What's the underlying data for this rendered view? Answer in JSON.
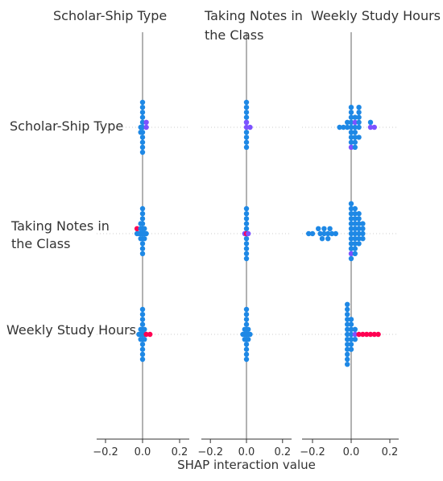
{
  "chart_data": {
    "type": "scatter",
    "subtype": "shap-interaction-beeswarm-matrix",
    "features": [
      "Scholar-Ship Type",
      "Taking Notes in the Class",
      "Weekly Study Hours"
    ],
    "column_titles": [
      [
        "Scholar-Ship Type"
      ],
      [
        "Taking Notes in",
        "the Class"
      ],
      [
        "Weekly Study Hours"
      ]
    ],
    "row_labels": [
      [
        "Scholar-Ship Type"
      ],
      [
        "Taking Notes in",
        "the Class"
      ],
      [
        "Weekly Study Hours"
      ]
    ],
    "xlabel": "SHAP interaction value",
    "xlim": [
      -0.25,
      0.25
    ],
    "xticks": [
      -0.2,
      0.0,
      0.2
    ],
    "xtick_labels": [
      "−0.2",
      "0.0",
      "0.2"
    ],
    "grid": "dotted horizontal row lines",
    "colors": {
      "low": "#1e88e5",
      "mid": "#7c52ff",
      "high": "#ff0052",
      "zero_line": "#999999",
      "axis": "#333333"
    },
    "cells": [
      {
        "row": 0,
        "col": 0,
        "points": [
          {
            "x": 0.0,
            "dy": -1,
            "c": 0
          },
          {
            "x": 0.0,
            "dy": 1,
            "c": 0
          },
          {
            "x": 0.0,
            "dy": -2,
            "c": 0
          },
          {
            "x": 0.0,
            "dy": 2,
            "c": 0
          },
          {
            "x": 0.0,
            "dy": -3,
            "c": 0
          },
          {
            "x": 0.0,
            "dy": 3,
            "c": 0
          },
          {
            "x": 0.0,
            "dy": -4,
            "c": 0
          },
          {
            "x": 0.0,
            "dy": 4,
            "c": 0
          },
          {
            "x": 0.0,
            "dy": -5,
            "c": 0
          },
          {
            "x": 0.0,
            "dy": 5,
            "c": 0
          },
          {
            "x": -0.01,
            "dy": 0,
            "c": 0
          },
          {
            "x": 0.0,
            "dy": 0,
            "c": 0
          },
          {
            "x": 0.02,
            "dy": 0,
            "c": 1
          },
          {
            "x": 0.02,
            "dy": -1,
            "c": 1
          },
          {
            "x": -0.01,
            "dy": 1,
            "c": 0
          }
        ]
      },
      {
        "row": 0,
        "col": 1,
        "points": [
          {
            "x": 0.0,
            "dy": -1,
            "c": 0
          },
          {
            "x": 0.0,
            "dy": 1,
            "c": 0
          },
          {
            "x": 0.0,
            "dy": -2,
            "c": 0
          },
          {
            "x": 0.0,
            "dy": 2,
            "c": 0
          },
          {
            "x": 0.0,
            "dy": -3,
            "c": 0
          },
          {
            "x": 0.0,
            "dy": 3,
            "c": 0
          },
          {
            "x": 0.0,
            "dy": -4,
            "c": 0
          },
          {
            "x": 0.0,
            "dy": 4,
            "c": 0
          },
          {
            "x": 0.0,
            "dy": -5,
            "c": 0
          },
          {
            "x": 0.0,
            "dy": 0,
            "c": 1
          },
          {
            "x": 0.02,
            "dy": 0,
            "c": 1
          },
          {
            "x": 0.0,
            "dy": -1,
            "c": 1
          }
        ]
      },
      {
        "row": 0,
        "col": 2,
        "points": [
          {
            "x": -0.06,
            "dy": 0,
            "c": 0
          },
          {
            "x": -0.04,
            "dy": 0,
            "c": 0
          },
          {
            "x": -0.02,
            "dy": 0,
            "c": 0
          },
          {
            "x": 0.0,
            "dy": 0,
            "c": 0
          },
          {
            "x": 0.02,
            "dy": 0,
            "c": 0
          },
          {
            "x": 0.04,
            "dy": 0,
            "c": 0
          },
          {
            "x": 0.1,
            "dy": 0,
            "c": 1
          },
          {
            "x": 0.12,
            "dy": 0,
            "c": 1
          },
          {
            "x": -0.02,
            "dy": -1,
            "c": 0
          },
          {
            "x": 0.0,
            "dy": -1,
            "c": 0
          },
          {
            "x": 0.02,
            "dy": -1,
            "c": 1
          },
          {
            "x": 0.04,
            "dy": -1,
            "c": 0
          },
          {
            "x": 0.1,
            "dy": -1,
            "c": 0
          },
          {
            "x": 0.0,
            "dy": -2,
            "c": 0
          },
          {
            "x": 0.02,
            "dy": -2,
            "c": 0
          },
          {
            "x": 0.04,
            "dy": -2,
            "c": 0
          },
          {
            "x": 0.0,
            "dy": -3,
            "c": 0
          },
          {
            "x": 0.04,
            "dy": -3,
            "c": 0
          },
          {
            "x": 0.04,
            "dy": -4,
            "c": 0
          },
          {
            "x": 0.0,
            "dy": -4,
            "c": 0
          },
          {
            "x": 0.0,
            "dy": 1,
            "c": 0
          },
          {
            "x": 0.02,
            "dy": 1,
            "c": 0
          },
          {
            "x": 0.0,
            "dy": 2,
            "c": 0
          },
          {
            "x": 0.02,
            "dy": 2,
            "c": 0
          },
          {
            "x": 0.04,
            "dy": 2,
            "c": 0
          },
          {
            "x": 0.0,
            "dy": 3,
            "c": 0
          },
          {
            "x": 0.02,
            "dy": 3,
            "c": 0
          },
          {
            "x": 0.0,
            "dy": 4,
            "c": 1
          },
          {
            "x": 0.02,
            "dy": 4,
            "c": 0
          }
        ]
      },
      {
        "row": 1,
        "col": 0,
        "points": [
          {
            "x": -0.03,
            "dy": 0,
            "c": 0
          },
          {
            "x": -0.02,
            "dy": 0,
            "c": 0
          },
          {
            "x": -0.01,
            "dy": 0,
            "c": 0
          },
          {
            "x": 0.0,
            "dy": 0,
            "c": 0
          },
          {
            "x": 0.01,
            "dy": 0,
            "c": 0
          },
          {
            "x": 0.02,
            "dy": 0,
            "c": 0
          },
          {
            "x": -0.03,
            "dy": -1,
            "c": 2
          },
          {
            "x": -0.01,
            "dy": -1,
            "c": 0
          },
          {
            "x": 0.0,
            "dy": -1,
            "c": 0
          },
          {
            "x": 0.01,
            "dy": -1,
            "c": 0
          },
          {
            "x": -0.01,
            "dy": -2,
            "c": 0
          },
          {
            "x": 0.0,
            "dy": -2,
            "c": 0
          },
          {
            "x": 0.0,
            "dy": -3,
            "c": 0
          },
          {
            "x": 0.0,
            "dy": -4,
            "c": 0
          },
          {
            "x": 0.0,
            "dy": -5,
            "c": 0
          },
          {
            "x": -0.01,
            "dy": 1,
            "c": 0
          },
          {
            "x": 0.0,
            "dy": 1,
            "c": 0
          },
          {
            "x": 0.01,
            "dy": 1,
            "c": 0
          },
          {
            "x": 0.0,
            "dy": 2,
            "c": 0
          },
          {
            "x": 0.0,
            "dy": 3,
            "c": 0
          },
          {
            "x": 0.0,
            "dy": 4,
            "c": 0
          }
        ]
      },
      {
        "row": 1,
        "col": 1,
        "points": [
          {
            "x": 0.0,
            "dy": -1,
            "c": 0
          },
          {
            "x": 0.0,
            "dy": 1,
            "c": 0
          },
          {
            "x": 0.0,
            "dy": -2,
            "c": 0
          },
          {
            "x": 0.0,
            "dy": 2,
            "c": 0
          },
          {
            "x": 0.0,
            "dy": -3,
            "c": 0
          },
          {
            "x": 0.0,
            "dy": 3,
            "c": 0
          },
          {
            "x": 0.0,
            "dy": -4,
            "c": 0
          },
          {
            "x": 0.0,
            "dy": 4,
            "c": 0
          },
          {
            "x": 0.0,
            "dy": -5,
            "c": 0
          },
          {
            "x": 0.0,
            "dy": 5,
            "c": 0
          },
          {
            "x": -0.01,
            "dy": 0,
            "c": 1
          },
          {
            "x": 0.0,
            "dy": 0,
            "c": 2
          },
          {
            "x": 0.01,
            "dy": 0,
            "c": 1
          }
        ]
      },
      {
        "row": 1,
        "col": 2,
        "points": [
          {
            "x": -0.22,
            "dy": 0,
            "c": 0
          },
          {
            "x": -0.2,
            "dy": 0,
            "c": 0
          },
          {
            "x": -0.16,
            "dy": 0,
            "c": 0
          },
          {
            "x": -0.14,
            "dy": 0,
            "c": 0
          },
          {
            "x": -0.12,
            "dy": 0,
            "c": 0
          },
          {
            "x": -0.1,
            "dy": 0,
            "c": 0
          },
          {
            "x": -0.08,
            "dy": 0,
            "c": 0
          },
          {
            "x": -0.17,
            "dy": -1,
            "c": 0
          },
          {
            "x": -0.14,
            "dy": -1,
            "c": 0
          },
          {
            "x": -0.11,
            "dy": -1,
            "c": 0
          },
          {
            "x": -0.15,
            "dy": 1,
            "c": 0
          },
          {
            "x": -0.12,
            "dy": 1,
            "c": 0
          },
          {
            "x": 0.0,
            "dy": 0,
            "c": 0
          },
          {
            "x": 0.02,
            "dy": 0,
            "c": 0
          },
          {
            "x": 0.04,
            "dy": 0,
            "c": 0
          },
          {
            "x": 0.06,
            "dy": 0,
            "c": 0
          },
          {
            "x": 0.0,
            "dy": -1,
            "c": 0
          },
          {
            "x": 0.02,
            "dy": -1,
            "c": 0
          },
          {
            "x": 0.04,
            "dy": -1,
            "c": 0
          },
          {
            "x": 0.06,
            "dy": -1,
            "c": 0
          },
          {
            "x": 0.0,
            "dy": -2,
            "c": 0
          },
          {
            "x": 0.02,
            "dy": -2,
            "c": 0
          },
          {
            "x": 0.04,
            "dy": -2,
            "c": 0
          },
          {
            "x": 0.06,
            "dy": -2,
            "c": 0
          },
          {
            "x": 0.0,
            "dy": -3,
            "c": 0
          },
          {
            "x": 0.02,
            "dy": -3,
            "c": 0
          },
          {
            "x": 0.04,
            "dy": -3,
            "c": 0
          },
          {
            "x": 0.0,
            "dy": -4,
            "c": 0
          },
          {
            "x": 0.02,
            "dy": -4,
            "c": 0
          },
          {
            "x": 0.04,
            "dy": -4,
            "c": 0
          },
          {
            "x": 0.0,
            "dy": -5,
            "c": 0
          },
          {
            "x": 0.02,
            "dy": -5,
            "c": 0
          },
          {
            "x": 0.0,
            "dy": -6,
            "c": 0
          },
          {
            "x": 0.0,
            "dy": 1,
            "c": 0
          },
          {
            "x": 0.02,
            "dy": 1,
            "c": 0
          },
          {
            "x": 0.04,
            "dy": 1,
            "c": 0
          },
          {
            "x": 0.06,
            "dy": 1,
            "c": 0
          },
          {
            "x": 0.0,
            "dy": 2,
            "c": 0
          },
          {
            "x": 0.02,
            "dy": 2,
            "c": 0
          },
          {
            "x": 0.04,
            "dy": 2,
            "c": 0
          },
          {
            "x": 0.0,
            "dy": 3,
            "c": 0
          },
          {
            "x": 0.02,
            "dy": 3,
            "c": 0
          },
          {
            "x": 0.0,
            "dy": 4,
            "c": 1
          },
          {
            "x": 0.02,
            "dy": 4,
            "c": 0
          },
          {
            "x": 0.0,
            "dy": 5,
            "c": 0
          }
        ]
      },
      {
        "row": 2,
        "col": 0,
        "points": [
          {
            "x": 0.0,
            "dy": -1,
            "c": 0
          },
          {
            "x": 0.0,
            "dy": 1,
            "c": 0
          },
          {
            "x": 0.0,
            "dy": -2,
            "c": 0
          },
          {
            "x": 0.0,
            "dy": 2,
            "c": 0
          },
          {
            "x": 0.0,
            "dy": -3,
            "c": 0
          },
          {
            "x": 0.0,
            "dy": 3,
            "c": 0
          },
          {
            "x": 0.0,
            "dy": -4,
            "c": 0
          },
          {
            "x": 0.0,
            "dy": 4,
            "c": 0
          },
          {
            "x": 0.0,
            "dy": -5,
            "c": 0
          },
          {
            "x": 0.0,
            "dy": 5,
            "c": 0
          },
          {
            "x": -0.02,
            "dy": 0,
            "c": 0
          },
          {
            "x": -0.01,
            "dy": 0,
            "c": 0
          },
          {
            "x": 0.0,
            "dy": 0,
            "c": 0
          },
          {
            "x": 0.01,
            "dy": 0,
            "c": 0
          },
          {
            "x": 0.02,
            "dy": 0,
            "c": 2
          },
          {
            "x": 0.04,
            "dy": 0,
            "c": 2
          },
          {
            "x": -0.01,
            "dy": -1,
            "c": 0
          },
          {
            "x": 0.01,
            "dy": -1,
            "c": 0
          },
          {
            "x": -0.01,
            "dy": 1,
            "c": 0
          },
          {
            "x": 0.01,
            "dy": 1,
            "c": 0
          }
        ]
      },
      {
        "row": 2,
        "col": 1,
        "points": [
          {
            "x": 0.0,
            "dy": -1,
            "c": 0
          },
          {
            "x": 0.0,
            "dy": 1,
            "c": 0
          },
          {
            "x": 0.0,
            "dy": -2,
            "c": 0
          },
          {
            "x": 0.0,
            "dy": 2,
            "c": 0
          },
          {
            "x": 0.0,
            "dy": -3,
            "c": 0
          },
          {
            "x": 0.0,
            "dy": 3,
            "c": 0
          },
          {
            "x": 0.0,
            "dy": -4,
            "c": 0
          },
          {
            "x": 0.0,
            "dy": 4,
            "c": 0
          },
          {
            "x": 0.0,
            "dy": -5,
            "c": 0
          },
          {
            "x": 0.0,
            "dy": 5,
            "c": 0
          },
          {
            "x": -0.02,
            "dy": 0,
            "c": 0
          },
          {
            "x": -0.01,
            "dy": 0,
            "c": 0
          },
          {
            "x": 0.0,
            "dy": 0,
            "c": 0
          },
          {
            "x": 0.01,
            "dy": 0,
            "c": 0
          },
          {
            "x": 0.02,
            "dy": 0,
            "c": 0
          },
          {
            "x": -0.01,
            "dy": -1,
            "c": 0
          },
          {
            "x": 0.01,
            "dy": -1,
            "c": 0
          },
          {
            "x": -0.01,
            "dy": 1,
            "c": 0
          },
          {
            "x": 0.01,
            "dy": 1,
            "c": 0
          }
        ]
      },
      {
        "row": 2,
        "col": 2,
        "points": [
          {
            "x": -0.02,
            "dy": 0,
            "c": 0
          },
          {
            "x": 0.0,
            "dy": 0,
            "c": 0
          },
          {
            "x": 0.02,
            "dy": 0,
            "c": 1
          },
          {
            "x": 0.04,
            "dy": 0,
            "c": 2
          },
          {
            "x": 0.06,
            "dy": 0,
            "c": 2
          },
          {
            "x": 0.08,
            "dy": 0,
            "c": 2
          },
          {
            "x": 0.1,
            "dy": 0,
            "c": 2
          },
          {
            "x": 0.12,
            "dy": 0,
            "c": 2
          },
          {
            "x": 0.14,
            "dy": 0,
            "c": 2
          },
          {
            "x": -0.02,
            "dy": -1,
            "c": 0
          },
          {
            "x": 0.0,
            "dy": -1,
            "c": 0
          },
          {
            "x": 0.02,
            "dy": -1,
            "c": 0
          },
          {
            "x": -0.02,
            "dy": -2,
            "c": 0
          },
          {
            "x": 0.0,
            "dy": -2,
            "c": 0
          },
          {
            "x": -0.02,
            "dy": -3,
            "c": 0
          },
          {
            "x": 0.0,
            "dy": -3,
            "c": 0
          },
          {
            "x": -0.02,
            "dy": -4,
            "c": 0
          },
          {
            "x": -0.02,
            "dy": -5,
            "c": 0
          },
          {
            "x": -0.02,
            "dy": -6,
            "c": 0
          },
          {
            "x": -0.02,
            "dy": 1,
            "c": 0
          },
          {
            "x": 0.0,
            "dy": 1,
            "c": 0
          },
          {
            "x": 0.02,
            "dy": 1,
            "c": 0
          },
          {
            "x": -0.02,
            "dy": 2,
            "c": 0
          },
          {
            "x": 0.0,
            "dy": 2,
            "c": 0
          },
          {
            "x": -0.02,
            "dy": 3,
            "c": 0
          },
          {
            "x": 0.0,
            "dy": 3,
            "c": 0
          },
          {
            "x": -0.02,
            "dy": 4,
            "c": 0
          },
          {
            "x": -0.02,
            "dy": 5,
            "c": 0
          },
          {
            "x": -0.02,
            "dy": 6,
            "c": 0
          }
        ]
      }
    ]
  }
}
